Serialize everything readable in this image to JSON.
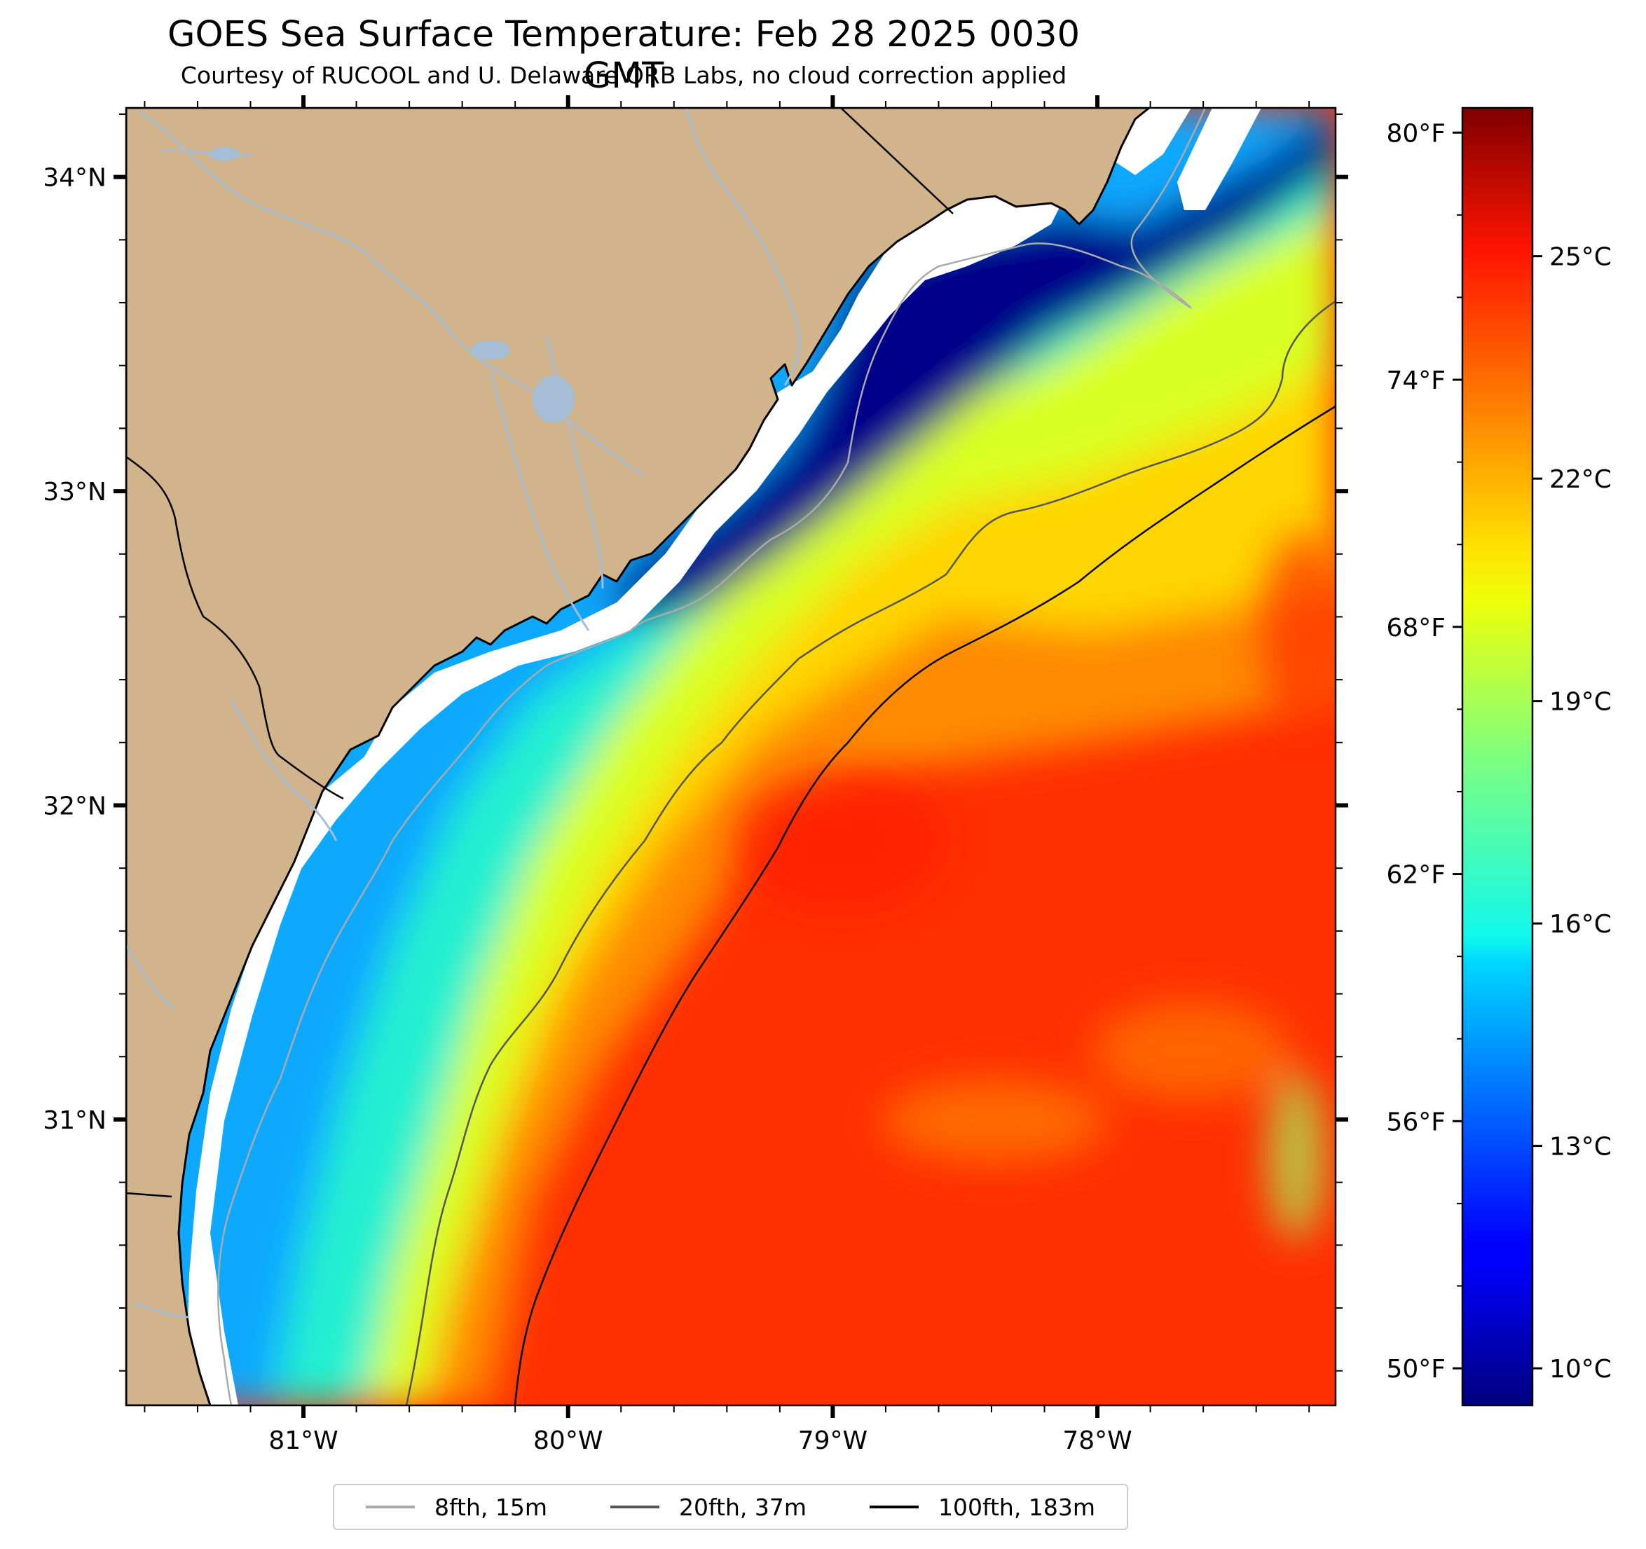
{
  "title": "GOES Sea Surface Temperature: Feb 28 2025 0030 GMT",
  "subtitle": "Courtesy of RUCOOL and U. Delaware ORB Labs, no cloud correction applied",
  "map": {
    "lon_range": [
      -81.67,
      -77.1
    ],
    "lat_range": [
      30.09,
      34.22
    ],
    "lat_ticks": [
      {
        "value": 34,
        "label": "34°N"
      },
      {
        "value": 33,
        "label": "33°N"
      },
      {
        "value": 32,
        "label": "32°N"
      },
      {
        "value": 31,
        "label": "31°N"
      }
    ],
    "lon_ticks": [
      {
        "value": -81,
        "label": "81°W"
      },
      {
        "value": -80,
        "label": "80°W"
      },
      {
        "value": -79,
        "label": "79°W"
      },
      {
        "value": -78,
        "label": "78°W"
      }
    ],
    "colors": {
      "land": "#d2b48c",
      "rivers": "#a6bdd6",
      "coastline": "#000000",
      "isobath_8fth": "#aaaaaa",
      "isobath_20fth": "#555555",
      "isobath_100fth": "#000000",
      "no_data": "#ffffff"
    }
  },
  "colorbar": {
    "colormap": "jet",
    "range_c": [
      9.5,
      27.0
    ],
    "fahrenheit_ticks": [
      {
        "value": 80,
        "label": "80°F"
      },
      {
        "value": 74,
        "label": "74°F"
      },
      {
        "value": 68,
        "label": "68°F"
      },
      {
        "value": 62,
        "label": "62°F"
      },
      {
        "value": 56,
        "label": "56°F"
      },
      {
        "value": 50,
        "label": "50°F"
      }
    ],
    "celsius_ticks": [
      {
        "value": 25,
        "label": "25°C"
      },
      {
        "value": 22,
        "label": "22°C"
      },
      {
        "value": 19,
        "label": "19°C"
      },
      {
        "value": 16,
        "label": "16°C"
      },
      {
        "value": 13,
        "label": "13°C"
      },
      {
        "value": 10,
        "label": "10°C"
      }
    ]
  },
  "legend": {
    "items": [
      {
        "label": "8fth, 15m",
        "color": "#aaaaaa"
      },
      {
        "label": "20fth, 37m",
        "color": "#555555"
      },
      {
        "label": "100fth, 183m",
        "color": "#000000"
      }
    ]
  }
}
